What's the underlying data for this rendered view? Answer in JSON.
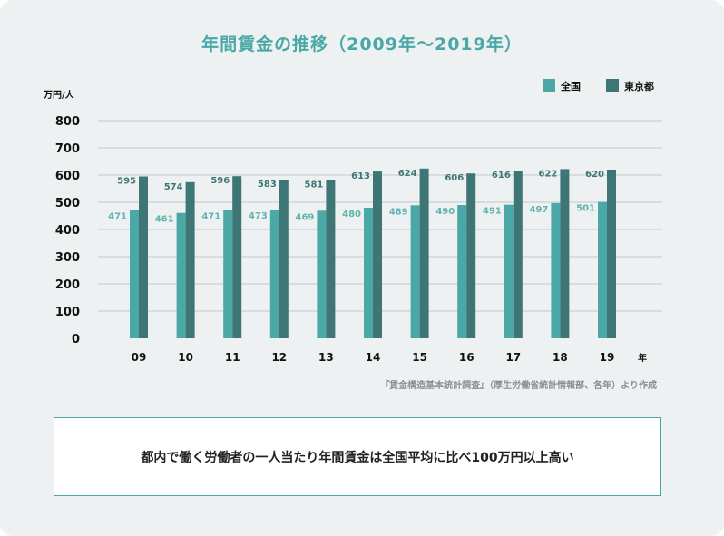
{
  "chart_data": {
    "type": "bar",
    "title": "年間賃金の推移（2009年〜2019年）",
    "ylabel": "万円/人",
    "xlabel": "年",
    "ylim": [
      0,
      800
    ],
    "yticks": [
      0,
      100,
      200,
      300,
      400,
      500,
      600,
      700,
      800
    ],
    "grid": true,
    "legend_position": "top-right",
    "categories": [
      "09",
      "10",
      "11",
      "12",
      "13",
      "14",
      "15",
      "16",
      "17",
      "18",
      "19"
    ],
    "series": [
      {
        "name": "全国",
        "color": "#4aa8a6",
        "label_color": "#5fb3b1",
        "values": [
          471,
          461,
          471,
          473,
          469,
          480,
          489,
          490,
          491,
          497,
          501
        ]
      },
      {
        "name": "東京都",
        "color": "#3d7675",
        "label_color": "#3d7675",
        "values": [
          595,
          574,
          596,
          583,
          581,
          613,
          624,
          606,
          616,
          622,
          620
        ]
      }
    ]
  },
  "source": "『賃金構造基本統計調査』（厚生労働省統計情報部、各年）より作成",
  "summary": "都内で働く労働者の一人当たり年間賃金は全国平均に比べ100万円以上高い"
}
